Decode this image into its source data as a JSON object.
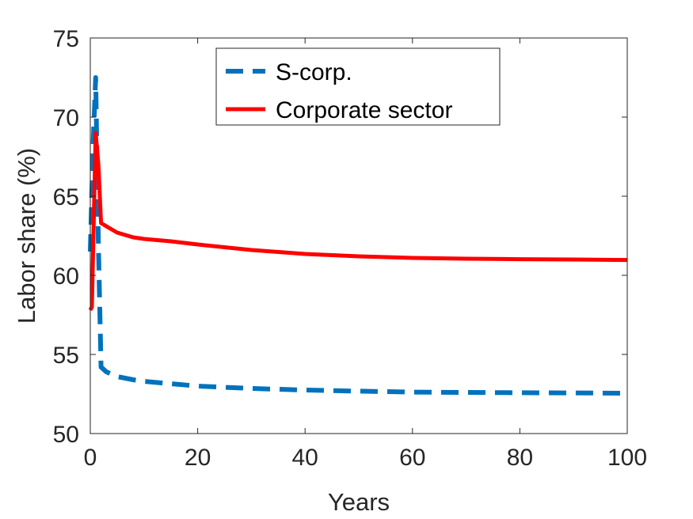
{
  "chart_data": {
    "type": "line",
    "title": "",
    "xlabel": "Years",
    "ylabel": "Labor share (%)",
    "xlim": [
      0,
      100
    ],
    "ylim": [
      50,
      75
    ],
    "xticks": [
      0,
      20,
      40,
      60,
      80,
      100
    ],
    "yticks": [
      50,
      55,
      60,
      65,
      70,
      75
    ],
    "grid": false,
    "legend_position": "top-center",
    "series": [
      {
        "name": "S-corp.",
        "color": "#0072BD",
        "style": "dashed",
        "x": [
          0,
          0.5,
          1,
          1.5,
          2,
          3,
          5,
          8,
          10,
          15,
          20,
          30,
          40,
          50,
          60,
          70,
          80,
          90,
          100
        ],
        "y": [
          61.5,
          68,
          72.5,
          62,
          54.2,
          53.9,
          53.6,
          53.4,
          53.3,
          53.15,
          53.0,
          52.85,
          52.75,
          52.68,
          52.62,
          52.6,
          52.58,
          52.57,
          52.55
        ]
      },
      {
        "name": "Corporate sector",
        "color": "#FF0000",
        "style": "solid",
        "x": [
          0,
          0.3,
          1,
          1.5,
          2,
          3,
          5,
          8,
          10,
          15,
          20,
          30,
          40,
          50,
          60,
          70,
          80,
          90,
          100
        ],
        "y": [
          57.8,
          58,
          69,
          67,
          63.3,
          63.1,
          62.7,
          62.4,
          62.3,
          62.15,
          61.95,
          61.6,
          61.35,
          61.2,
          61.1,
          61.05,
          61.02,
          61.0,
          60.97
        ]
      }
    ]
  }
}
